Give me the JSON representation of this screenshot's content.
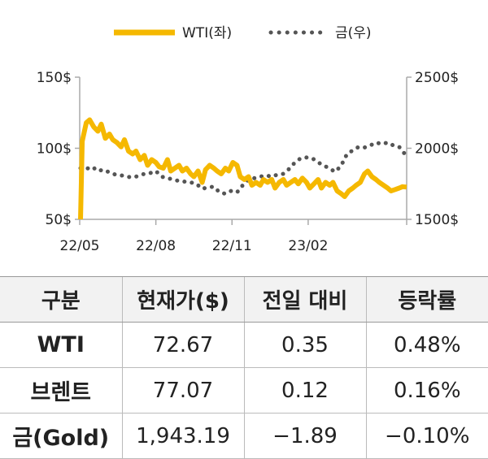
{
  "chart_data": {
    "type": "line",
    "legend": {
      "placement": "top-center",
      "entries": [
        {
          "label": "WTI(좌)",
          "color": "#f5b800",
          "style": "solid"
        },
        {
          "label": "금(우)",
          "color": "#555555",
          "style": "dotted"
        }
      ]
    },
    "x_ticks": [
      "22/05",
      "22/08",
      "22/11",
      "23/02"
    ],
    "y_left": {
      "ticks": [
        "150$",
        "100$",
        "50$"
      ],
      "range": [
        50,
        150
      ]
    },
    "y_right": {
      "ticks": [
        "2500$",
        "2000$",
        "1500$"
      ],
      "range": [
        1500,
        2500
      ]
    },
    "series": [
      {
        "name": "WTI(좌)",
        "axis": "left",
        "color": "#f5b800",
        "x": [
          "2022-05-02",
          "2022-05-04",
          "2022-05-09",
          "2022-05-13",
          "2022-05-18",
          "2022-05-23",
          "2022-05-27",
          "2022-06-01",
          "2022-06-06",
          "2022-06-10",
          "2022-06-15",
          "2022-06-20",
          "2022-06-24",
          "2022-06-29",
          "2022-07-04",
          "2022-07-08",
          "2022-07-13",
          "2022-07-18",
          "2022-07-22",
          "2022-07-27",
          "2022-08-01",
          "2022-08-05",
          "2022-08-10",
          "2022-08-15",
          "2022-08-19",
          "2022-08-24",
          "2022-08-29",
          "2022-09-02",
          "2022-09-07",
          "2022-09-12",
          "2022-09-16",
          "2022-09-21",
          "2022-09-26",
          "2022-09-30",
          "2022-10-05",
          "2022-10-10",
          "2022-10-14",
          "2022-10-19",
          "2022-10-24",
          "2022-10-28",
          "2022-11-02",
          "2022-11-07",
          "2022-11-11",
          "2022-11-16",
          "2022-11-21",
          "2022-11-25",
          "2022-11-30",
          "2022-12-05",
          "2022-12-09",
          "2022-12-14",
          "2022-12-19",
          "2022-12-23",
          "2022-12-28",
          "2023-01-02",
          "2023-01-06",
          "2023-01-11",
          "2023-01-16",
          "2023-01-20",
          "2023-01-25",
          "2023-01-30",
          "2023-02-03",
          "2023-02-08",
          "2023-02-13",
          "2023-02-17",
          "2023-02-22",
          "2023-02-27",
          "2023-03-03",
          "2023-03-08",
          "2023-03-13",
          "2023-03-17",
          "2023-03-22",
          "2023-03-27",
          "2023-03-31",
          "2023-04-05",
          "2023-04-10",
          "2023-04-14",
          "2023-04-19",
          "2023-04-24",
          "2023-04-28",
          "2023-05-03",
          "2023-05-08",
          "2023-05-12",
          "2023-05-17",
          "2023-05-22",
          "2023-05-26",
          "2023-05-31"
        ],
        "y": [
          50,
          105,
          118,
          120,
          115,
          112,
          117,
          107,
          110,
          106,
          104,
          101,
          106,
          98,
          96,
          98,
          92,
          95,
          88,
          92,
          90,
          87,
          86,
          92,
          84,
          86,
          88,
          84,
          86,
          82,
          80,
          84,
          76,
          85,
          88,
          86,
          84,
          82,
          86,
          84,
          90,
          88,
          80,
          78,
          80,
          74,
          76,
          74,
          78,
          76,
          78,
          72,
          76,
          78,
          74,
          76,
          78,
          75,
          79,
          76,
          72,
          75,
          78,
          72,
          76,
          74,
          76,
          70,
          68,
          66,
          70,
          72,
          74,
          76,
          82,
          84,
          80,
          78,
          76,
          74,
          72,
          70,
          71,
          72,
          73,
          72.67
        ]
      },
      {
        "name": "금(우)",
        "axis": "right",
        "color": "#555555",
        "x": [
          "2022-05-02",
          "2022-05-09",
          "2022-05-16",
          "2022-05-23",
          "2022-05-30",
          "2022-06-06",
          "2022-06-13",
          "2022-06-20",
          "2022-06-27",
          "2022-07-04",
          "2022-07-11",
          "2022-07-18",
          "2022-07-25",
          "2022-08-01",
          "2022-08-08",
          "2022-08-15",
          "2022-08-22",
          "2022-08-29",
          "2022-09-05",
          "2022-09-12",
          "2022-09-19",
          "2022-09-26",
          "2022-10-03",
          "2022-10-10",
          "2022-10-17",
          "2022-10-24",
          "2022-10-31",
          "2022-11-07",
          "2022-11-14",
          "2022-11-21",
          "2022-11-28",
          "2022-12-05",
          "2022-12-12",
          "2022-12-19",
          "2022-12-26",
          "2023-01-02",
          "2023-01-09",
          "2023-01-16",
          "2023-01-23",
          "2023-01-30",
          "2023-02-06",
          "2023-02-13",
          "2023-02-20",
          "2023-02-27",
          "2023-03-06",
          "2023-03-13",
          "2023-03-20",
          "2023-03-27",
          "2023-04-03",
          "2023-04-10",
          "2023-04-17",
          "2023-04-24",
          "2023-05-01",
          "2023-05-08",
          "2023-05-15",
          "2023-05-22",
          "2023-05-31"
        ],
        "y": [
          1860,
          1855,
          1870,
          1840,
          1850,
          1830,
          1815,
          1810,
          1800,
          1795,
          1805,
          1820,
          1825,
          1840,
          1800,
          1790,
          1780,
          1770,
          1765,
          1760,
          1750,
          1715,
          1725,
          1730,
          1690,
          1680,
          1700,
          1690,
          1740,
          1780,
          1790,
          1800,
          1810,
          1800,
          1815,
          1820,
          1855,
          1900,
          1930,
          1935,
          1930,
          1900,
          1880,
          1855,
          1835,
          1880,
          1960,
          1985,
          2010,
          2005,
          2020,
          2040,
          2030,
          2040,
          2020,
          2010,
          1943.19
        ]
      }
    ]
  },
  "table": {
    "headers": [
      "구분",
      "현재가($)",
      "전일 대비",
      "등락률"
    ],
    "rows": [
      {
        "name": "WTI",
        "price": "72.67",
        "change": "0.35",
        "rate": "0.48%"
      },
      {
        "name": "브렌트",
        "price": "77.07",
        "change": "0.12",
        "rate": "0.16%"
      },
      {
        "name": "금(Gold)",
        "price": "1,943.19",
        "change": "−1.89",
        "rate": "−0.10%"
      }
    ]
  }
}
